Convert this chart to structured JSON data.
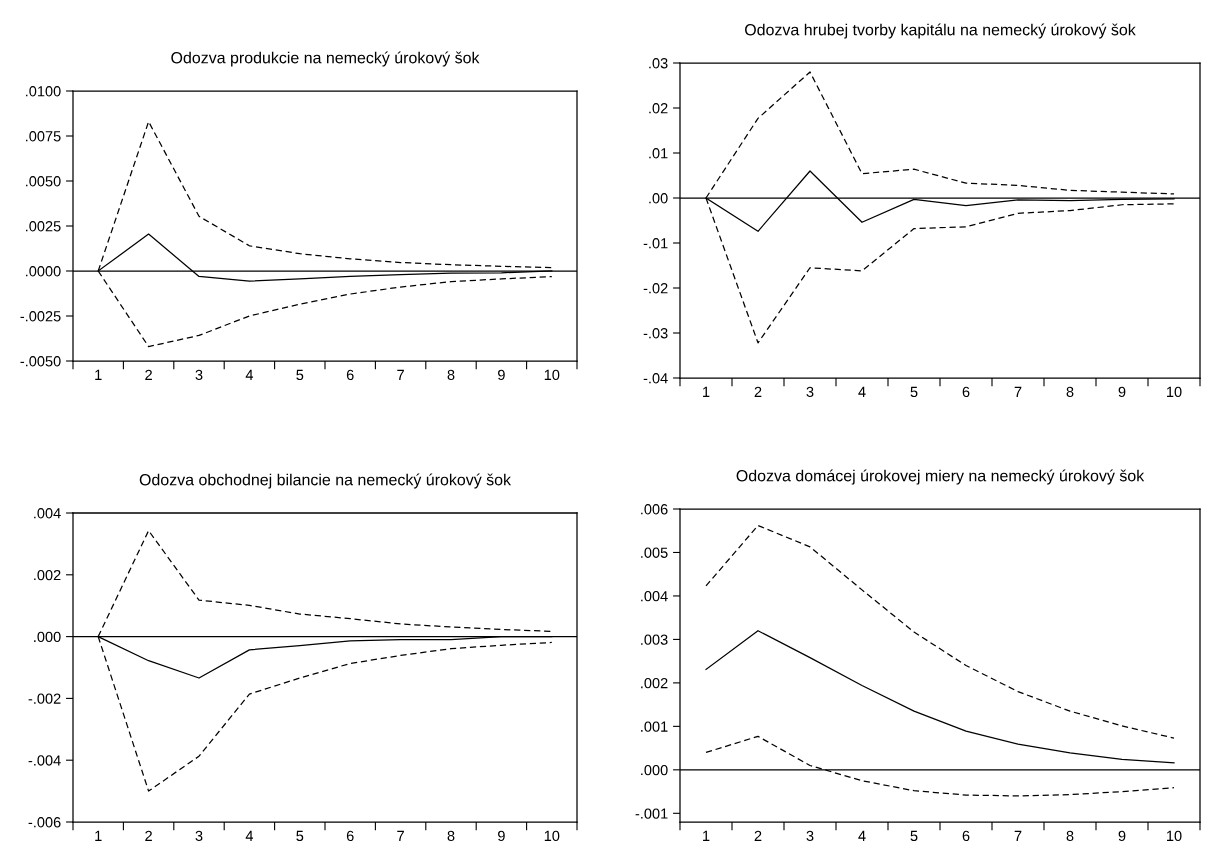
{
  "chart_data": [
    {
      "type": "line",
      "title": "Odozva produkcie na nemecký úrokový šok",
      "x": [
        1,
        2,
        3,
        4,
        5,
        6,
        7,
        8,
        9,
        10
      ],
      "xlim": [
        0.5,
        10.5
      ],
      "xticks": [
        {
          "value": 0.5,
          "label": null
        },
        1,
        {
          "value": 1.5,
          "label": null
        },
        2,
        {
          "value": 2.5,
          "label": null
        },
        3,
        {
          "value": 3.5,
          "label": null
        },
        4,
        {
          "value": 4.5,
          "label": null
        },
        5,
        {
          "value": 5.5,
          "label": null
        },
        6,
        {
          "value": 6.5,
          "label": null
        },
        7,
        {
          "value": 7.5,
          "label": null
        },
        8,
        {
          "value": 8.5,
          "label": null
        },
        9,
        {
          "value": 9.5,
          "label": null
        },
        10,
        {
          "value": 10.5,
          "label": null
        }
      ],
      "ylim": [
        -0.005,
        0.01
      ],
      "yticks": [
        {
          "value": -0.005,
          "label": "-.0050"
        },
        {
          "value": -0.0025,
          "label": "-.0025"
        },
        {
          "value": 0,
          "label": ".0000"
        },
        {
          "value": 0.0025,
          "label": ".0025"
        },
        {
          "value": 0.005,
          "label": ".0050"
        },
        {
          "value": 0.0075,
          "label": ".0075"
        },
        {
          "value": 0.01,
          "label": ".0100"
        }
      ],
      "ref_lines": [
        {
          "axis": "y",
          "value": 0,
          "color": "#000000",
          "line_style": "solid"
        }
      ],
      "grid": false,
      "legend": false,
      "marker": "none",
      "series": [
        {
          "color": "#000000",
          "line_style": "solid",
          "values": [
            0,
            0.00205,
            -0.0003,
            -0.00056,
            -0.00044,
            -0.0003,
            -0.0002,
            -0.00012,
            -0.0001,
            0
          ]
        },
        {
          "color": "#000000",
          "line_style": "dashed",
          "values": [
            0,
            0.0083,
            0.00304,
            0.0014,
            0.00096,
            0.00068,
            0.00047,
            0.00035,
            0.00026,
            0.00019
          ]
        },
        {
          "color": "#000000",
          "line_style": "dashed",
          "values": [
            0,
            -0.0042,
            -0.00358,
            -0.0025,
            -0.00184,
            -0.00128,
            -0.00089,
            -0.00059,
            -0.00044,
            -0.00031
          ]
        }
      ]
    },
    {
      "type": "line",
      "title": "Odozva hrubej tvorby kapitálu na nemecký úrokový šok",
      "x": [
        1,
        2,
        3,
        4,
        5,
        6,
        7,
        8,
        9,
        10
      ],
      "xlim": [
        0.5,
        10.5
      ],
      "xticks": [
        {
          "value": 0.5,
          "label": null
        },
        1,
        {
          "value": 1.5,
          "label": null
        },
        2,
        {
          "value": 2.5,
          "label": null
        },
        3,
        {
          "value": 3.5,
          "label": null
        },
        4,
        {
          "value": 4.5,
          "label": null
        },
        5,
        {
          "value": 5.5,
          "label": null
        },
        6,
        {
          "value": 6.5,
          "label": null
        },
        7,
        {
          "value": 7.5,
          "label": null
        },
        8,
        {
          "value": 8.5,
          "label": null
        },
        9,
        {
          "value": 9.5,
          "label": null
        },
        10,
        {
          "value": 10.5,
          "label": null
        }
      ],
      "ylim": [
        -0.04,
        0.03
      ],
      "yticks": [
        {
          "value": -0.04,
          "label": "-.04"
        },
        {
          "value": -0.03,
          "label": "-.03"
        },
        {
          "value": -0.02,
          "label": "-.02"
        },
        {
          "value": -0.01,
          "label": "-.01"
        },
        {
          "value": 0,
          "label": ".00"
        },
        {
          "value": 0.01,
          "label": ".01"
        },
        {
          "value": 0.02,
          "label": ".02"
        },
        {
          "value": 0.03,
          "label": ".03"
        }
      ],
      "ref_lines": [
        {
          "axis": "y",
          "value": 0,
          "color": "#000000",
          "line_style": "solid"
        }
      ],
      "grid": false,
      "legend": false,
      "marker": "none",
      "series": [
        {
          "color": "#000000",
          "line_style": "solid",
          "values": [
            0,
            -0.0074,
            0.006,
            -0.0054,
            -0.0003,
            -0.0017,
            -0.0004,
            -0.0006,
            -0.0003,
            -0.0002
          ]
        },
        {
          "color": "#000000",
          "line_style": "dashed",
          "values": [
            0,
            0.0177,
            0.028,
            0.0054,
            0.0064,
            0.0033,
            0.0028,
            0.0017,
            0.0013,
            0.0009
          ]
        },
        {
          "color": "#000000",
          "line_style": "dashed",
          "values": [
            0,
            -0.0322,
            -0.0155,
            -0.0162,
            -0.0068,
            -0.0064,
            -0.0034,
            -0.0028,
            -0.0015,
            -0.0013
          ]
        }
      ]
    },
    {
      "type": "line",
      "title": "Odozva obchodnej bilancie na nemecký úrokový šok",
      "x": [
        1,
        2,
        3,
        4,
        5,
        6,
        7,
        8,
        9,
        10
      ],
      "xlim": [
        0.5,
        10.5
      ],
      "xticks": [
        {
          "value": 0.5,
          "label": null
        },
        1,
        {
          "value": 1.5,
          "label": null
        },
        2,
        {
          "value": 2.5,
          "label": null
        },
        3,
        {
          "value": 3.5,
          "label": null
        },
        4,
        {
          "value": 4.5,
          "label": null
        },
        5,
        {
          "value": 5.5,
          "label": null
        },
        6,
        {
          "value": 6.5,
          "label": null
        },
        7,
        {
          "value": 7.5,
          "label": null
        },
        8,
        {
          "value": 8.5,
          "label": null
        },
        9,
        {
          "value": 9.5,
          "label": null
        },
        10,
        {
          "value": 10.5,
          "label": null
        }
      ],
      "ylim": [
        -0.006,
        0.004
      ],
      "yticks": [
        {
          "value": -0.006,
          "label": "-.006"
        },
        {
          "value": -0.004,
          "label": "-.004"
        },
        {
          "value": -0.002,
          "label": "-.002"
        },
        {
          "value": 0,
          "label": ".000"
        },
        {
          "value": 0.002,
          "label": ".002"
        },
        {
          "value": 0.004,
          "label": ".004"
        }
      ],
      "ref_lines": [
        {
          "axis": "y",
          "value": 0,
          "color": "#000000",
          "line_style": "solid"
        }
      ],
      "grid": false,
      "legend": false,
      "marker": "none",
      "series": [
        {
          "color": "#000000",
          "line_style": "solid",
          "values": [
            0,
            -0.00078,
            -0.00134,
            -0.00043,
            -0.00029,
            -0.00014,
            -0.0001,
            -0.0001,
            0,
            0
          ]
        },
        {
          "color": "#000000",
          "line_style": "dashed",
          "values": [
            0,
            0.00343,
            0.00118,
            0.00101,
            0.00073,
            0.00058,
            0.00041,
            0.00031,
            0.00023,
            0.00017
          ]
        },
        {
          "color": "#000000",
          "line_style": "dashed",
          "values": [
            0,
            -0.005,
            -0.00387,
            -0.00186,
            -0.00134,
            -0.00087,
            -0.00061,
            -0.00039,
            -0.00028,
            -0.00019
          ]
        }
      ]
    },
    {
      "type": "line",
      "title": "Odozva domácej úrokovej miery na nemecký úrokový šok",
      "x": [
        1,
        2,
        3,
        4,
        5,
        6,
        7,
        8,
        9,
        10
      ],
      "xlim": [
        0.5,
        10.5
      ],
      "xticks": [
        {
          "value": 0.5,
          "label": null
        },
        1,
        {
          "value": 1.5,
          "label": null
        },
        2,
        {
          "value": 2.5,
          "label": null
        },
        3,
        {
          "value": 3.5,
          "label": null
        },
        4,
        {
          "value": 4.5,
          "label": null
        },
        5,
        {
          "value": 5.5,
          "label": null
        },
        6,
        {
          "value": 6.5,
          "label": null
        },
        7,
        {
          "value": 7.5,
          "label": null
        },
        8,
        {
          "value": 8.5,
          "label": null
        },
        9,
        {
          "value": 9.5,
          "label": null
        },
        10,
        {
          "value": 10.5,
          "label": null
        }
      ],
      "ylim": [
        -0.0012,
        0.006
      ],
      "yticks": [
        {
          "value": -0.001,
          "label": "-.001"
        },
        {
          "value": 0,
          "label": ".000"
        },
        {
          "value": 0.001,
          "label": ".001"
        },
        {
          "value": 0.002,
          "label": ".002"
        },
        {
          "value": 0.003,
          "label": ".003"
        },
        {
          "value": 0.004,
          "label": ".004"
        },
        {
          "value": 0.005,
          "label": ".005"
        },
        {
          "value": 0.006,
          "label": ".006"
        }
      ],
      "ref_lines": [
        {
          "axis": "y",
          "value": 0,
          "color": "#000000",
          "line_style": "solid"
        }
      ],
      "grid": false,
      "legend": false,
      "marker": "none",
      "series": [
        {
          "color": "#000000",
          "line_style": "solid",
          "values": [
            0.00231,
            0.0032,
            0.00258,
            0.00194,
            0.00135,
            0.00089,
            0.00059,
            0.00039,
            0.00024,
            0.00016
          ]
        },
        {
          "color": "#000000",
          "line_style": "dashed",
          "values": [
            0.00423,
            0.00562,
            0.00513,
            0.00414,
            0.00317,
            0.0024,
            0.0018,
            0.00135,
            0.00101,
            0.00073
          ]
        },
        {
          "color": "#000000",
          "line_style": "dashed",
          "values": [
            0.0004,
            0.00077,
            0.0001,
            -0.00025,
            -0.00048,
            -0.00058,
            -0.0006,
            -0.00057,
            -0.0005,
            -0.00041
          ]
        }
      ]
    }
  ]
}
